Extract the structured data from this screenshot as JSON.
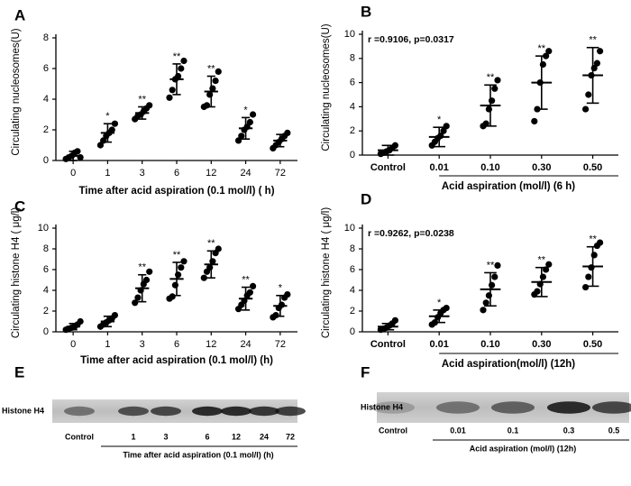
{
  "chart_data": [
    {
      "type": "dot",
      "panel": "A",
      "y_label": "Circulating nucleosomes(U)",
      "x_label": "Time after acid aspiration (0.1 mol/l) ( h)",
      "categories": [
        "0",
        "1",
        "3",
        "6",
        "12",
        "24",
        "72"
      ],
      "means": [
        0.3,
        1.8,
        3.1,
        5.3,
        4.5,
        2.1,
        1.3
      ],
      "sds": [
        0.3,
        0.6,
        0.4,
        1.0,
        1.0,
        0.7,
        0.4
      ],
      "points": [
        [
          0.1,
          0.2,
          0.3,
          0.5,
          0.6,
          0.2
        ],
        [
          1.0,
          1.3,
          1.6,
          1.8,
          2.0,
          2.4
        ],
        [
          2.7,
          2.9,
          3.0,
          3.2,
          3.4,
          3.6
        ],
        [
          4.1,
          4.6,
          5.3,
          5.5,
          6.0,
          6.5
        ],
        [
          3.5,
          3.6,
          4.3,
          4.7,
          5.2,
          5.8
        ],
        [
          1.3,
          1.6,
          2.0,
          2.2,
          2.5,
          3.0
        ],
        [
          0.8,
          1.0,
          1.2,
          1.4,
          1.6,
          1.8
        ]
      ],
      "significance": [
        null,
        "*",
        "**",
        "**",
        "**",
        "*",
        null
      ],
      "ylim": [
        0,
        8
      ],
      "yticks": [
        0,
        2,
        4,
        6,
        8
      ],
      "color": "#000000"
    },
    {
      "type": "dot",
      "panel": "B",
      "y_label": "Circulating nucleosomes(U)",
      "x_label": "Acid aspiration (mol/l) (6 h)",
      "stat": "r =0.9106, p=0.0317",
      "categories": [
        "Control",
        "0.01",
        "0.10",
        "0.30",
        "0.50"
      ],
      "means": [
        0.4,
        1.5,
        4.1,
        6.0,
        6.6
      ],
      "sds": [
        0.4,
        0.8,
        1.7,
        2.2,
        2.3
      ],
      "points": [
        [
          0.1,
          0.2,
          0.3,
          0.4,
          0.6,
          0.8
        ],
        [
          0.8,
          1.1,
          1.4,
          1.6,
          2.0,
          2.4
        ],
        [
          2.4,
          2.6,
          3.8,
          4.5,
          5.5,
          6.2
        ],
        [
          2.8,
          3.8,
          6.0,
          7.5,
          8.2,
          8.6
        ],
        [
          3.8,
          5.0,
          6.6,
          7.2,
          7.6,
          8.6
        ]
      ],
      "significance": [
        null,
        "*",
        "**",
        "**",
        "**"
      ],
      "ylim": [
        0,
        10
      ],
      "yticks": [
        0,
        2,
        4,
        6,
        8,
        10
      ],
      "color": "#000000"
    },
    {
      "type": "dot",
      "panel": "C",
      "y_label": "Circulating histone H4 ( μg/l)",
      "x_label": "Time after acid aspiration (0.1 mol/l) (h)",
      "categories": [
        "0",
        "1",
        "3",
        "6",
        "12",
        "24",
        "72"
      ],
      "means": [
        0.5,
        1.0,
        4.2,
        5.1,
        6.5,
        3.2,
        2.5
      ],
      "sds": [
        0.3,
        0.5,
        1.3,
        1.6,
        1.3,
        1.1,
        1.0
      ],
      "points": [
        [
          0.2,
          0.3,
          0.4,
          0.5,
          0.7,
          1.0
        ],
        [
          0.5,
          0.7,
          0.9,
          1.1,
          1.3,
          1.6
        ],
        [
          2.8,
          3.3,
          4.0,
          4.6,
          5.0,
          5.8
        ],
        [
          3.2,
          3.4,
          4.5,
          5.5,
          6.2,
          6.8
        ],
        [
          5.2,
          5.8,
          6.2,
          6.8,
          7.6,
          8.0
        ],
        [
          2.2,
          2.6,
          3.0,
          3.5,
          3.8,
          4.4
        ],
        [
          1.4,
          1.6,
          2.3,
          2.6,
          3.3,
          3.6
        ]
      ],
      "significance": [
        null,
        null,
        "**",
        "**",
        "**",
        "**",
        "*"
      ],
      "ylim": [
        0,
        10
      ],
      "yticks": [
        0,
        2,
        4,
        6,
        8,
        10
      ],
      "color": "#000000"
    },
    {
      "type": "dot",
      "panel": "D",
      "y_label": "Circulating histone H4 ( μg/l)",
      "x_label": "Acid aspiration(mol/l) (12h)",
      "stat": "r =0.9262, p=0.0238",
      "categories": [
        "Control",
        "0.01",
        "0.10",
        "0.30",
        "0.50"
      ],
      "means": [
        0.5,
        1.5,
        4.1,
        4.8,
        6.3
      ],
      "sds": [
        0.3,
        0.6,
        1.6,
        1.4,
        1.9
      ],
      "points": [
        [
          0.2,
          0.3,
          0.4,
          0.6,
          0.8,
          1.1
        ],
        [
          0.7,
          0.9,
          1.4,
          1.8,
          2.1,
          2.3
        ],
        [
          2.1,
          2.8,
          3.5,
          4.5,
          5.3,
          6.4
        ],
        [
          3.6,
          3.9,
          4.6,
          5.3,
          6.0,
          6.5
        ],
        [
          4.3,
          5.3,
          6.2,
          7.4,
          8.3,
          8.6
        ]
      ],
      "significance": [
        null,
        "*",
        "**",
        "**",
        "**"
      ],
      "ylim": [
        0,
        10
      ],
      "yticks": [
        0,
        2,
        4,
        6,
        8,
        10
      ],
      "color": "#000000"
    }
  ],
  "blots": [
    {
      "panel": "E",
      "protein": "Histone H4",
      "lanes": [
        "Control",
        "1",
        "3",
        "6",
        "12",
        "24",
        "72"
      ],
      "caption": "Time after acid aspiration (0.1 mol/l) (h)"
    },
    {
      "panel": "F",
      "protein": "Histone H4",
      "lanes": [
        "Control",
        "0.01",
        "0.1",
        "0.3",
        "0.5"
      ],
      "caption": "Acid aspiration (mol/l) (12h)"
    }
  ]
}
